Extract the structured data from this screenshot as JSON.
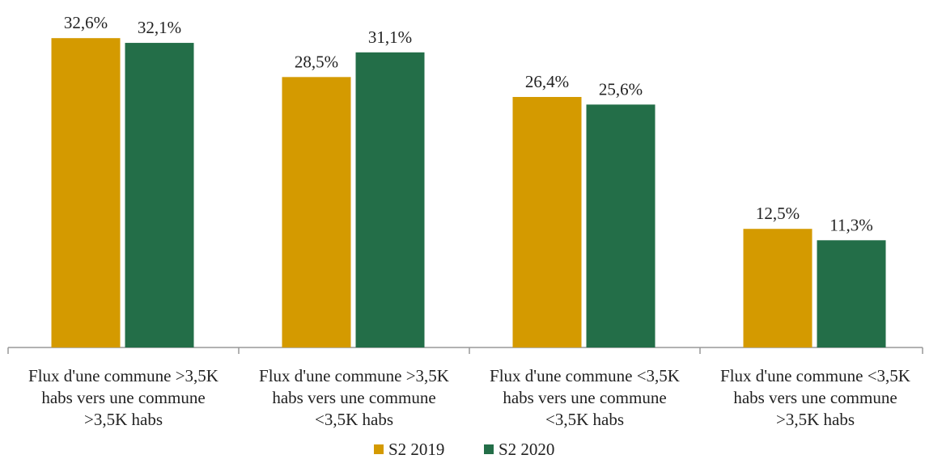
{
  "chart_data": {
    "type": "bar",
    "categories": [
      "Flux d'une commune >3,5K habs vers une commune >3,5K habs",
      "Flux d'une commune >3,5K habs vers une commune <3,5K habs",
      "Flux d'une commune <3,5K habs vers une commune <3,5K habs",
      "Flux d'une commune <3,5K habs vers une commune >3,5K habs"
    ],
    "series": [
      {
        "name": "S2 2019",
        "color": "#d49a00",
        "values": [
          32.6,
          28.5,
          26.4,
          12.5
        ],
        "value_labels": [
          "32,6%",
          "28,5%",
          "26,4%",
          "12,5%"
        ]
      },
      {
        "name": "S2 2020",
        "color": "#236e48",
        "values": [
          32.1,
          31.1,
          25.6,
          11.3
        ],
        "value_labels": [
          "32,1%",
          "31,1%",
          "25,6%",
          "11,3%"
        ]
      }
    ],
    "ylim": [
      0,
      35
    ],
    "legend": "bottom"
  }
}
